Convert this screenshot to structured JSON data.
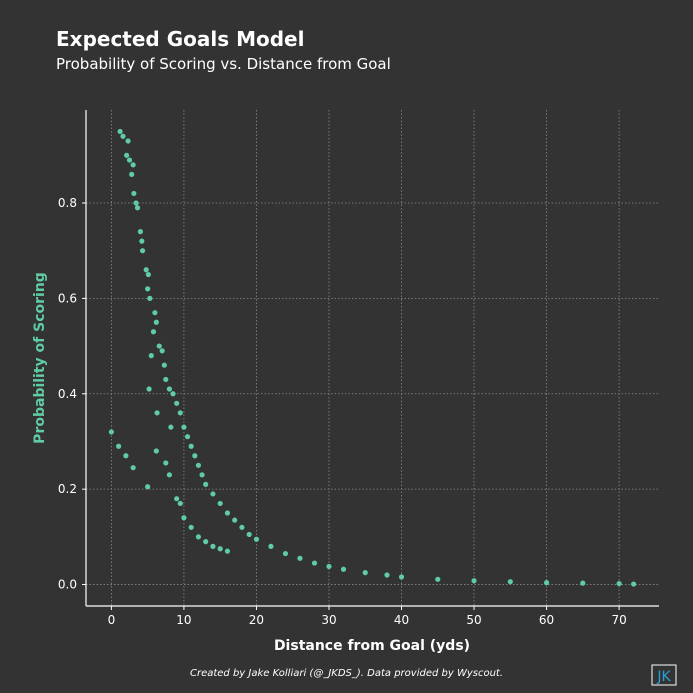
{
  "header": {
    "title": "Expected Goals Model",
    "subtitle": "Probability of Scoring vs. Distance from Goal"
  },
  "footer": {
    "credit": "Created by Jake Kolliari (@_JKDS_). Data provided by Wyscout.",
    "logo_text": "JK"
  },
  "colors": {
    "background": "#333333",
    "accent": "#5fcca4",
    "grid": "#8a8a8a",
    "text": "#ffffff"
  },
  "chart_data": {
    "type": "scatter",
    "title": "Expected Goals Model",
    "subtitle": "Probability of Scoring vs. Distance from Goal",
    "xlabel": "Distance from Goal (yds)",
    "ylabel": "Probability of Scoring",
    "xlim": [
      -3.5,
      75.5
    ],
    "ylim": [
      -0.045,
      0.995
    ],
    "xticks": [
      0,
      10,
      20,
      30,
      40,
      50,
      60,
      70
    ],
    "yticks": [
      0.0,
      0.2,
      0.4,
      0.6,
      0.8
    ],
    "grid": "dotted",
    "legend": "none",
    "series": [
      {
        "points": [
          [
            0,
            0.32
          ],
          [
            1,
            0.29
          ],
          [
            2,
            0.27
          ],
          [
            3,
            0.245
          ],
          [
            1.2,
            0.95
          ],
          [
            1.6,
            0.94
          ],
          [
            2.3,
            0.93
          ],
          [
            2.1,
            0.9
          ],
          [
            2.5,
            0.89
          ],
          [
            3.0,
            0.88
          ],
          [
            2.8,
            0.86
          ],
          [
            3.1,
            0.82
          ],
          [
            3.4,
            0.8
          ],
          [
            3.6,
            0.79
          ],
          [
            4.0,
            0.74
          ],
          [
            4.2,
            0.72
          ],
          [
            4.3,
            0.7
          ],
          [
            4.8,
            0.66
          ],
          [
            5.1,
            0.65
          ],
          [
            5.0,
            0.62
          ],
          [
            5.3,
            0.6
          ],
          [
            6.0,
            0.57
          ],
          [
            6.2,
            0.55
          ],
          [
            5.8,
            0.53
          ],
          [
            6.6,
            0.5
          ],
          [
            7.0,
            0.49
          ],
          [
            5.5,
            0.48
          ],
          [
            7.3,
            0.46
          ],
          [
            5.2,
            0.41
          ],
          [
            7.5,
            0.43
          ],
          [
            8.0,
            0.41
          ],
          [
            8.5,
            0.4
          ],
          [
            9.0,
            0.38
          ],
          [
            6.3,
            0.36
          ],
          [
            9.5,
            0.36
          ],
          [
            8.2,
            0.33
          ],
          [
            10.0,
            0.33
          ],
          [
            6.2,
            0.28
          ],
          [
            10.5,
            0.31
          ],
          [
            11.0,
            0.29
          ],
          [
            5.0,
            0.205
          ],
          [
            7.5,
            0.255
          ],
          [
            8.0,
            0.23
          ],
          [
            9.0,
            0.18
          ],
          [
            9.5,
            0.17
          ],
          [
            10.0,
            0.14
          ],
          [
            11.5,
            0.27
          ],
          [
            12.0,
            0.25
          ],
          [
            12.5,
            0.23
          ],
          [
            13.0,
            0.21
          ],
          [
            14.0,
            0.19
          ],
          [
            15.0,
            0.17
          ],
          [
            16.0,
            0.15
          ],
          [
            17.0,
            0.135
          ],
          [
            18.0,
            0.12
          ],
          [
            19.0,
            0.105
          ],
          [
            20.0,
            0.095
          ],
          [
            11.0,
            0.12
          ],
          [
            12.0,
            0.1
          ],
          [
            13.0,
            0.09
          ],
          [
            14.0,
            0.08
          ],
          [
            15.0,
            0.075
          ],
          [
            16.0,
            0.07
          ],
          [
            22.0,
            0.08
          ],
          [
            24.0,
            0.065
          ],
          [
            26.0,
            0.055
          ],
          [
            28.0,
            0.045
          ],
          [
            30.0,
            0.038
          ],
          [
            32.0,
            0.032
          ],
          [
            35.0,
            0.025
          ],
          [
            38.0,
            0.02
          ],
          [
            40.0,
            0.016
          ],
          [
            45.0,
            0.011
          ],
          [
            50.0,
            0.008
          ],
          [
            55.0,
            0.006
          ],
          [
            60.0,
            0.004
          ],
          [
            65.0,
            0.003
          ],
          [
            70.0,
            0.002
          ],
          [
            72.0,
            0.001
          ]
        ]
      }
    ]
  }
}
